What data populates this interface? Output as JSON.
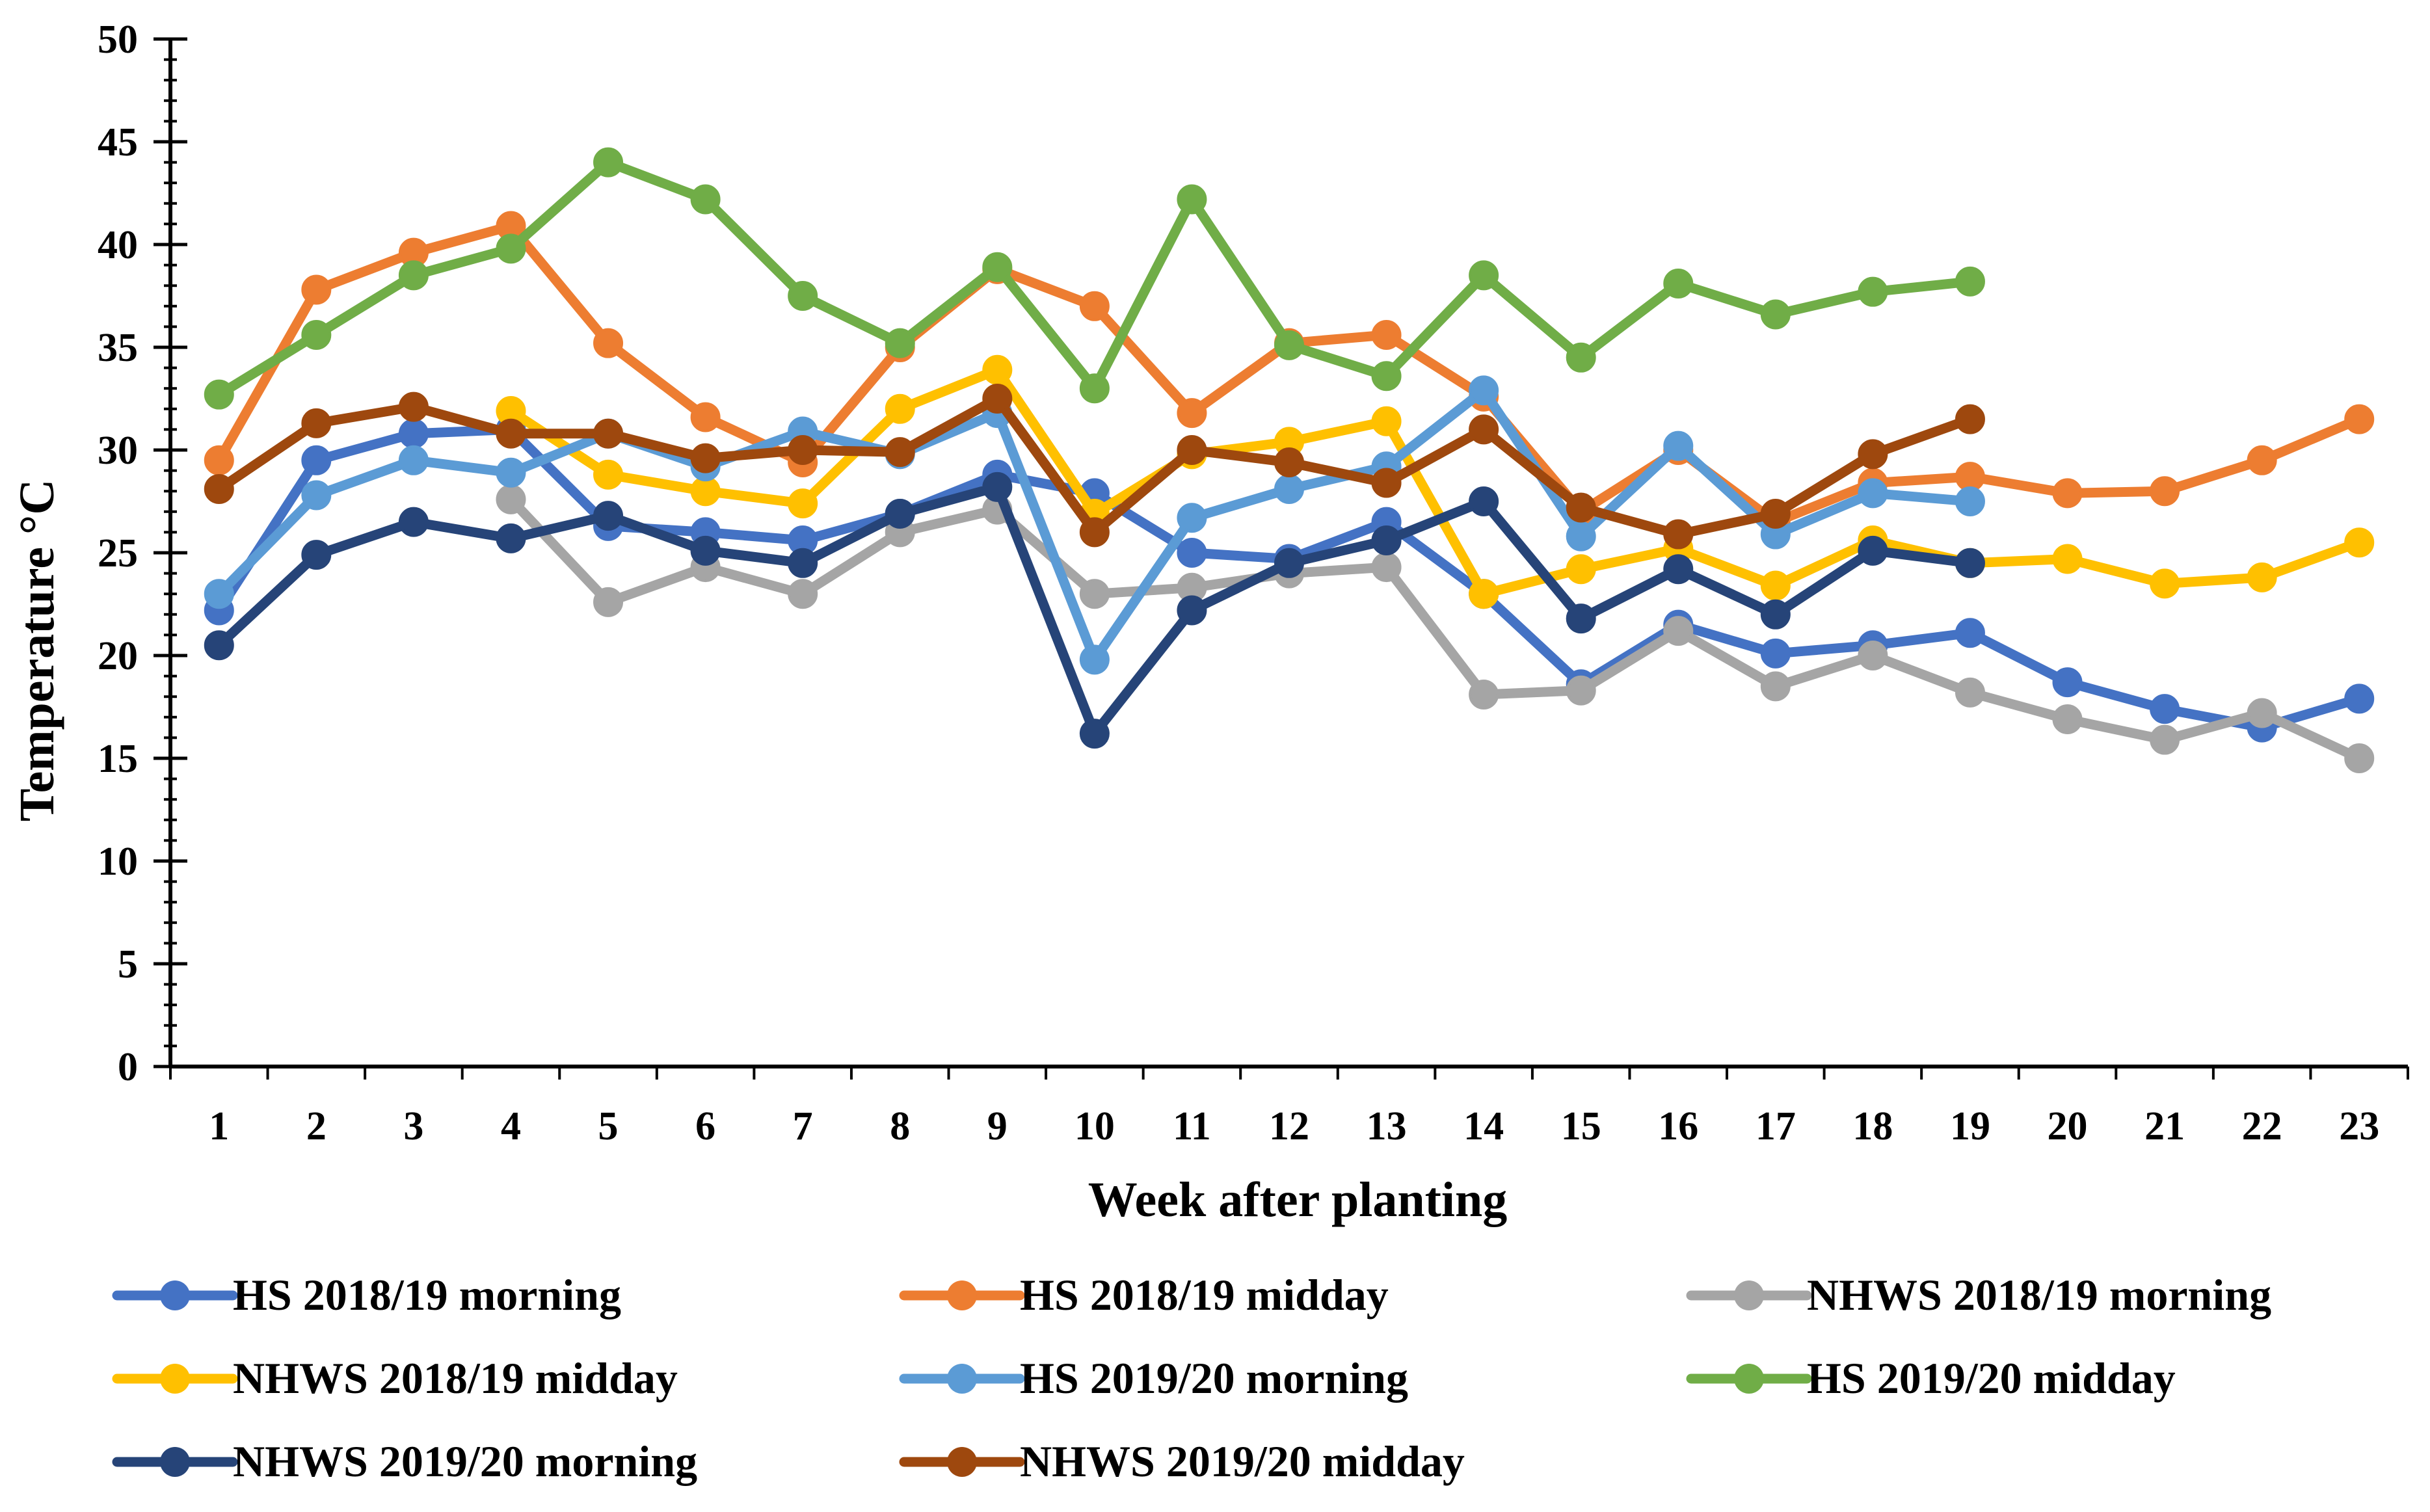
{
  "chart_data": {
    "type": "line",
    "title": "",
    "xlabel": "Week after planting",
    "ylabel": "Temperature °C",
    "ylim": [
      0,
      50
    ],
    "y_major_step": 5,
    "y_minor_step": 1,
    "grid": false,
    "legend_position": "bottom",
    "x": [
      1,
      2,
      3,
      4,
      5,
      6,
      7,
      8,
      9,
      10,
      11,
      12,
      13,
      14,
      15,
      16,
      17,
      18,
      19,
      20,
      21,
      22,
      23
    ],
    "series": [
      {
        "name": "HS 2018/19 morning",
        "color": "#4472C4",
        "values": [
          22.2,
          29.5,
          30.8,
          31,
          26.3,
          26,
          25.6,
          26.9,
          28.8,
          27.9,
          25,
          24.7,
          26.5,
          23,
          18.6,
          21.5,
          20.1,
          20.5,
          21.1,
          18.7,
          17.4,
          16.5,
          17.9
        ]
      },
      {
        "name": "HS 2018/19 midday",
        "color": "#ED7D31",
        "values": [
          29.5,
          37.8,
          39.6,
          40.9,
          35.2,
          31.6,
          29.4,
          35,
          38.8,
          37,
          31.8,
          35.2,
          35.6,
          32.6,
          27,
          30,
          26.5,
          28.4,
          28.7,
          27.9,
          28,
          29.5,
          31.5
        ]
      },
      {
        "name": "NHWS 2018/19 morning",
        "color": "#A5A5A5",
        "values": [
          null,
          null,
          null,
          27.6,
          22.6,
          24.3,
          23,
          26,
          27.1,
          23,
          23.3,
          24,
          24.3,
          18.1,
          18.3,
          21.2,
          18.5,
          20,
          18.2,
          16.9,
          15.9,
          17.2,
          15
        ]
      },
      {
        "name": "NHWS 2018/19 midday",
        "color": "#FFC000",
        "values": [
          null,
          null,
          null,
          31.9,
          28.8,
          28,
          27.4,
          32,
          33.9,
          26.9,
          29.8,
          30.4,
          31.4,
          23,
          24.2,
          25.2,
          23.4,
          25.6,
          24.5,
          24.7,
          23.5,
          23.8,
          25.5
        ]
      },
      {
        "name": "HS 2019/20 morning",
        "color": "#5B9BD5",
        "values": [
          23,
          27.8,
          29.5,
          28.9,
          30.8,
          29.2,
          30.9,
          29.8,
          31.8,
          19.8,
          26.7,
          28.1,
          29.2,
          32.9,
          25.8,
          30.2,
          25.9,
          27.9,
          27.5,
          null,
          null,
          null,
          null
        ]
      },
      {
        "name": "HS 2019/20 midday",
        "color": "#70AD47",
        "values": [
          32.7,
          35.6,
          38.5,
          39.8,
          44,
          42.2,
          37.5,
          35.2,
          38.9,
          33,
          42.2,
          35.1,
          33.6,
          38.5,
          34.5,
          38.1,
          36.6,
          37.7,
          38.2,
          null,
          null,
          null,
          null
        ]
      },
      {
        "name": "NHWS 2019/20 morning",
        "color": "#264478",
        "values": [
          20.5,
          24.9,
          26.5,
          25.7,
          26.8,
          25.1,
          24.5,
          26.9,
          28.2,
          16.2,
          22.2,
          24.5,
          25.6,
          27.5,
          21.8,
          24.2,
          22,
          25.1,
          24.5,
          null,
          null,
          null,
          null
        ]
      },
      {
        "name": "NHWS 2019/20 midday",
        "color": "#9E480E",
        "values": [
          28.1,
          31.3,
          32.1,
          30.8,
          30.8,
          29.6,
          30,
          29.9,
          32.5,
          26,
          30,
          29.4,
          28.4,
          31,
          27.2,
          25.9,
          26.9,
          29.8,
          31.5,
          null,
          null,
          null,
          null
        ]
      }
    ]
  }
}
